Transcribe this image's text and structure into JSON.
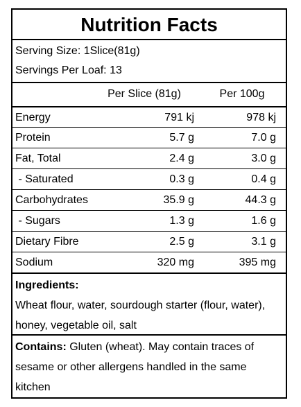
{
  "label": {
    "title": "Nutrition Facts",
    "serving_size": "Serving Size: 1Slice(81g)",
    "servings_per": "Servings Per Loaf: 13",
    "col_headers": [
      "Per Slice (81g)",
      "Per 100g"
    ],
    "rows": [
      {
        "name": "Energy",
        "per_slice": "791 kj",
        "per_100g": "978 kj"
      },
      {
        "name": "Protein",
        "per_slice": "5.7 g",
        "per_100g": "7.0 g"
      },
      {
        "name": "Fat, Total",
        "per_slice": "2.4 g",
        "per_100g": "3.0 g"
      },
      {
        "name": " - Saturated",
        "per_slice": "0.3 g",
        "per_100g": "0.4 g"
      },
      {
        "name": "Carbohydrates",
        "per_slice": "35.9 g",
        "per_100g": "44.3 g"
      },
      {
        "name": " - Sugars",
        "per_slice": "1.3 g",
        "per_100g": "1.6 g"
      },
      {
        "name": "Dietary Fibre",
        "per_slice": "2.5 g",
        "per_100g": "3.1 g"
      },
      {
        "name": "Sodium",
        "per_slice": "320 mg",
        "per_100g": "395 mg"
      }
    ],
    "ingredients_heading": "Ingredients:",
    "ingredients_text": "Wheat flour, water, sourdough starter (flour, water), honey, vegetable oil, salt",
    "contains_heading": "Contains:",
    "contains_text": " Gluten (wheat). May contain traces of sesame or other allergens handled in the same kitchen"
  }
}
